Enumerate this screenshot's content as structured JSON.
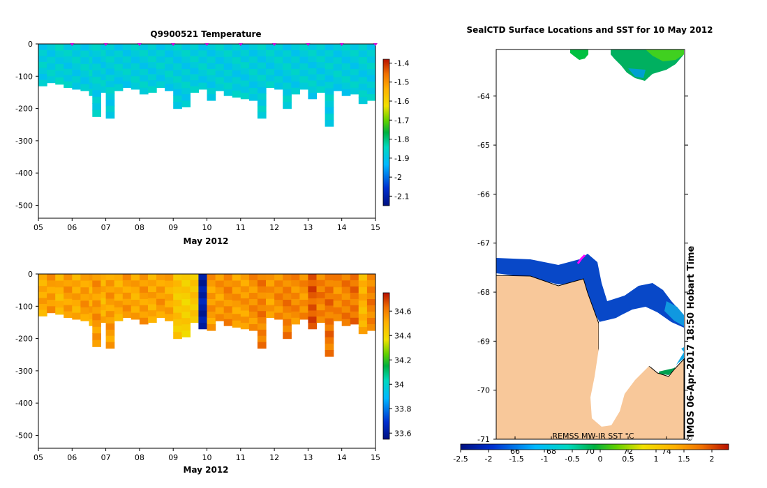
{
  "chart_data": [
    {
      "id": "temperature",
      "type": "heatmap",
      "title": "Q9900521  Temperature",
      "xlabel": "May 2012",
      "x_ticks": [
        "05",
        "06",
        "07",
        "08",
        "09",
        "10",
        "11",
        "12",
        "13",
        "14",
        "15"
      ],
      "xlim": [
        5,
        15
      ],
      "ylim": [
        -540,
        0
      ],
      "y_ticks": [
        0,
        -100,
        -200,
        -300,
        -400,
        -500
      ],
      "y_tick_labels": [
        "0",
        "-100",
        "-200",
        "-300",
        "-400",
        "-500"
      ],
      "profile_markers_day": [
        6,
        7,
        8,
        9,
        10,
        11,
        12,
        13,
        14,
        15
      ],
      "colorbar": {
        "min": -2.15,
        "max": -1.38,
        "ticks": [
          -1.4,
          -1.5,
          -1.6,
          -1.7,
          -1.8,
          -1.9,
          -2,
          -2.1
        ],
        "tick_labels": [
          "-1.4",
          "-1.5",
          "-1.6",
          "-1.7",
          "-1.8",
          "-1.9",
          "-2",
          "-2.1"
        ]
      },
      "profiles": [
        {
          "t": 5.0,
          "d": 130,
          "v": -1.88
        },
        {
          "t": 5.25,
          "d": 120,
          "v": -1.88
        },
        {
          "t": 5.5,
          "d": 125,
          "v": -1.87
        },
        {
          "t": 5.75,
          "d": 135,
          "v": -1.88
        },
        {
          "t": 6.0,
          "d": 140,
          "v": -1.88
        },
        {
          "t": 6.25,
          "d": 145,
          "v": -1.88
        },
        {
          "t": 6.5,
          "d": 160,
          "v": -1.87
        },
        {
          "t": 6.6,
          "d": 225,
          "v": -1.88
        },
        {
          "t": 6.85,
          "d": 150,
          "v": -1.88
        },
        {
          "t": 7.0,
          "d": 230,
          "v": -1.88
        },
        {
          "t": 7.25,
          "d": 145,
          "v": -1.88
        },
        {
          "t": 7.5,
          "d": 135,
          "v": -1.88
        },
        {
          "t": 7.75,
          "d": 140,
          "v": -1.88
        },
        {
          "t": 8.0,
          "d": 155,
          "v": -1.88
        },
        {
          "t": 8.25,
          "d": 150,
          "v": -1.88
        },
        {
          "t": 8.5,
          "d": 135,
          "v": -1.88
        },
        {
          "t": 8.75,
          "d": 145,
          "v": -1.88
        },
        {
          "t": 9.0,
          "d": 200,
          "v": -1.88
        },
        {
          "t": 9.25,
          "d": 195,
          "v": -1.88
        },
        {
          "t": 9.5,
          "d": 150,
          "v": -1.88
        },
        {
          "t": 9.75,
          "d": 140,
          "v": -1.88
        },
        {
          "t": 10.0,
          "d": 175,
          "v": -1.88
        },
        {
          "t": 10.25,
          "d": 145,
          "v": -1.88
        },
        {
          "t": 10.5,
          "d": 160,
          "v": -1.88
        },
        {
          "t": 10.75,
          "d": 165,
          "v": -1.88
        },
        {
          "t": 11.0,
          "d": 170,
          "v": -1.88
        },
        {
          "t": 11.25,
          "d": 175,
          "v": -1.88
        },
        {
          "t": 11.5,
          "d": 230,
          "v": -1.88
        },
        {
          "t": 11.75,
          "d": 135,
          "v": -1.88
        },
        {
          "t": 12.0,
          "d": 140,
          "v": -1.88
        },
        {
          "t": 12.25,
          "d": 200,
          "v": -1.88
        },
        {
          "t": 12.5,
          "d": 155,
          "v": -1.88
        },
        {
          "t": 12.75,
          "d": 140,
          "v": -1.88
        },
        {
          "t": 13.0,
          "d": 170,
          "v": -1.88
        },
        {
          "t": 13.25,
          "d": 150,
          "v": -1.88
        },
        {
          "t": 13.5,
          "d": 255,
          "v": -1.88
        },
        {
          "t": 13.75,
          "d": 145,
          "v": -1.88
        },
        {
          "t": 14.0,
          "d": 160,
          "v": -1.88
        },
        {
          "t": 14.25,
          "d": 155,
          "v": -1.88
        },
        {
          "t": 14.5,
          "d": 185,
          "v": -1.88
        },
        {
          "t": 14.75,
          "d": 175,
          "v": -1.88
        },
        {
          "t": 15.0,
          "d": 165,
          "v": -1.88
        }
      ]
    },
    {
      "id": "salinity",
      "type": "heatmap",
      "title": "",
      "xlabel": "May 2012",
      "x_ticks": [
        "05",
        "06",
        "07",
        "08",
        "09",
        "10",
        "11",
        "12",
        "13",
        "14",
        "15"
      ],
      "xlim": [
        5,
        15
      ],
      "ylim": [
        -540,
        0
      ],
      "y_ticks": [
        0,
        -100,
        -200,
        -300,
        -400,
        -500
      ],
      "y_tick_labels": [
        "0",
        "-100",
        "-200",
        "-300",
        "-400",
        "-500"
      ],
      "colorbar": {
        "min": 33.55,
        "max": 34.75,
        "ticks": [
          34.6,
          34.4,
          34.2,
          34,
          33.8,
          33.6
        ],
        "tick_labels": [
          "34.6",
          "34.4",
          "34.2",
          "34",
          "33.8",
          "33.6"
        ]
      },
      "profiles": [
        {
          "t": 5.0,
          "d": 130,
          "v": 34.52
        },
        {
          "t": 5.25,
          "d": 120,
          "v": 34.55
        },
        {
          "t": 5.5,
          "d": 125,
          "v": 34.5
        },
        {
          "t": 5.75,
          "d": 135,
          "v": 34.55
        },
        {
          "t": 6.0,
          "d": 140,
          "v": 34.52
        },
        {
          "t": 6.25,
          "d": 145,
          "v": 34.55
        },
        {
          "t": 6.5,
          "d": 160,
          "v": 34.52
        },
        {
          "t": 6.6,
          "d": 225,
          "v": 34.56
        },
        {
          "t": 6.85,
          "d": 150,
          "v": 34.5
        },
        {
          "t": 7.0,
          "d": 230,
          "v": 34.55
        },
        {
          "t": 7.25,
          "d": 145,
          "v": 34.52
        },
        {
          "t": 7.5,
          "d": 135,
          "v": 34.55
        },
        {
          "t": 7.75,
          "d": 140,
          "v": 34.52
        },
        {
          "t": 8.0,
          "d": 155,
          "v": 34.55
        },
        {
          "t": 8.25,
          "d": 150,
          "v": 34.52
        },
        {
          "t": 8.5,
          "d": 135,
          "v": 34.55
        },
        {
          "t": 8.75,
          "d": 145,
          "v": 34.52
        },
        {
          "t": 9.0,
          "d": 200,
          "v": 34.45
        },
        {
          "t": 9.25,
          "d": 195,
          "v": 34.42
        },
        {
          "t": 9.5,
          "d": 150,
          "v": 34.45
        },
        {
          "t": 9.75,
          "d": 170,
          "v": 33.62
        },
        {
          "t": 10.0,
          "d": 175,
          "v": 34.55
        },
        {
          "t": 10.25,
          "d": 145,
          "v": 34.55
        },
        {
          "t": 10.5,
          "d": 160,
          "v": 34.58
        },
        {
          "t": 10.75,
          "d": 165,
          "v": 34.55
        },
        {
          "t": 11.0,
          "d": 170,
          "v": 34.55
        },
        {
          "t": 11.25,
          "d": 175,
          "v": 34.57
        },
        {
          "t": 11.5,
          "d": 230,
          "v": 34.6
        },
        {
          "t": 11.75,
          "d": 135,
          "v": 34.55
        },
        {
          "t": 12.0,
          "d": 140,
          "v": 34.58
        },
        {
          "t": 12.25,
          "d": 200,
          "v": 34.6
        },
        {
          "t": 12.5,
          "d": 155,
          "v": 34.58
        },
        {
          "t": 12.75,
          "d": 140,
          "v": 34.57
        },
        {
          "t": 13.0,
          "d": 170,
          "v": 34.66
        },
        {
          "t": 13.25,
          "d": 150,
          "v": 34.6
        },
        {
          "t": 13.5,
          "d": 255,
          "v": 34.62
        },
        {
          "t": 13.75,
          "d": 145,
          "v": 34.58
        },
        {
          "t": 14.0,
          "d": 160,
          "v": 34.6
        },
        {
          "t": 14.25,
          "d": 155,
          "v": 34.62
        },
        {
          "t": 14.5,
          "d": 185,
          "v": 34.5
        },
        {
          "t": 14.75,
          "d": 175,
          "v": 34.6
        },
        {
          "t": 15.0,
          "d": 165,
          "v": 34.58
        }
      ]
    },
    {
      "id": "sst-map",
      "type": "heatmap",
      "title": "SealCTD Surface Locations and SST for 10 May 2012",
      "lat_ticks": [
        -64,
        -65,
        -66,
        -67,
        -68,
        -69,
        -70,
        -71
      ],
      "lat_tick_labels": [
        "-64",
        "-65",
        "-66",
        "-67",
        "-68",
        "-69",
        "-70",
        "-71"
      ],
      "lat_range": [
        -71,
        -63.05
      ],
      "lon_tick_labels": [
        "66",
        "68",
        "70",
        "72",
        "74"
      ],
      "colorbar": {
        "label": "REMSS MW-IR SST °C",
        "min": -2.5,
        "max": 2.3,
        "ticks": [
          -2.5,
          -2,
          -1.5,
          -1,
          -0.5,
          0,
          0.5,
          1,
          1.5,
          2
        ],
        "tick_labels": [
          "-2.5",
          "-2",
          "-1.5",
          "-1",
          "-0.5",
          "0",
          "0.5",
          "1",
          "1.5",
          "2"
        ]
      },
      "land_color": "#F8C89A",
      "ice_color": "#FFFFFF",
      "track_color": "#FF00FF",
      "stamp": "IMOS 06-Apr-2017 18:50 Hobart Time",
      "copyright": "©"
    }
  ]
}
